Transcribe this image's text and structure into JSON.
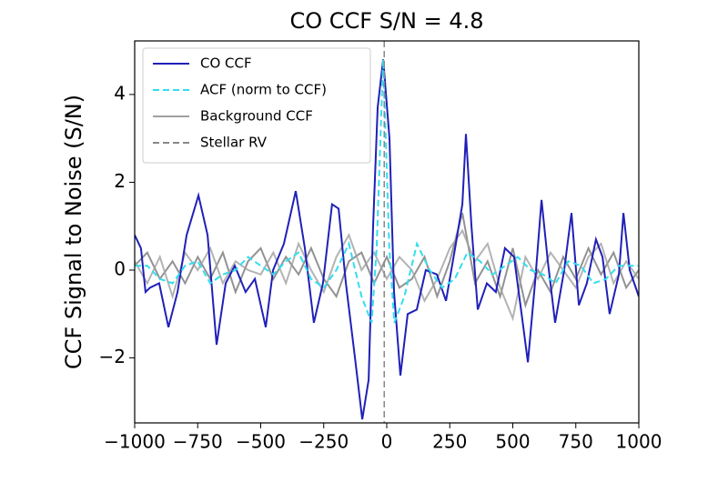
{
  "chart_data": {
    "type": "line",
    "title": "CO CCF S/N = 4.8",
    "ylabel": "CCF Signal to Noise (S/N)",
    "xlim": [
      -1000,
      1000
    ],
    "ylim": [
      -3.48,
      5.22
    ],
    "xticks": [
      {
        "value": -1000,
        "label": "−1000"
      },
      {
        "value": -750,
        "label": "−750"
      },
      {
        "value": -500,
        "label": "−500"
      },
      {
        "value": -250,
        "label": "−250"
      },
      0,
      250,
      500,
      750,
      1000
    ],
    "yticks": [
      {
        "value": -2,
        "label": "−2"
      },
      0,
      2,
      4
    ],
    "legend": "upper left",
    "series": [
      {
        "name": "CO CCF",
        "color": "#2020b8",
        "style": "solid",
        "x": [
          -1000,
          -975,
          -957,
          -939,
          -903,
          -866,
          -830,
          -794,
          -747,
          -711,
          -675,
          -639,
          -603,
          -560,
          -523,
          -480,
          -451,
          -408,
          -361,
          -325,
          -289,
          -253,
          -217,
          -191,
          -162,
          -126,
          -97,
          -72,
          -54,
          -36,
          -14,
          11,
          29,
          54,
          83,
          119,
          155,
          199,
          235,
          271,
          300,
          314,
          336,
          361,
          397,
          433,
          469,
          505,
          542,
          560,
          588,
          614,
          639,
          668,
          704,
          733,
          762,
          794,
          830,
          856,
          884,
          921,
          939,
          964,
          1000
        ],
        "values": [
          0.8,
          0.5,
          -0.5,
          -0.4,
          -0.3,
          -1.3,
          -0.5,
          0.8,
          1.7,
          0.8,
          -1.7,
          -0.3,
          0.1,
          -0.5,
          -0.2,
          -1.3,
          0.0,
          0.6,
          1.8,
          0.5,
          -1.2,
          -0.3,
          1.5,
          1.4,
          -0.3,
          -2.0,
          -3.4,
          -2.5,
          1.0,
          3.7,
          4.8,
          3.0,
          -0.5,
          -2.4,
          -1.0,
          -0.9,
          0.0,
          -0.1,
          -0.7,
          0.5,
          1.5,
          3.1,
          1.0,
          -0.9,
          -0.3,
          -0.5,
          0.5,
          0.3,
          -1.3,
          -2.1,
          -0.3,
          1.6,
          0.2,
          -1.2,
          0.0,
          1.3,
          -0.8,
          -0.3,
          0.7,
          0.3,
          -1.0,
          -0.1,
          1.3,
          0.0,
          -0.6
        ]
      },
      {
        "name": "ACF (norm to CCF)",
        "color": "#33ddee",
        "style": "dashed",
        "x": [
          -1000,
          -950,
          -900,
          -850,
          -800,
          -750,
          -700,
          -650,
          -600,
          -550,
          -500,
          -450,
          -400,
          -350,
          -300,
          -250,
          -200,
          -150,
          -100,
          -60,
          -40,
          -14,
          10,
          30,
          70,
          120,
          170,
          220,
          270,
          320,
          370,
          420,
          470,
          520,
          570,
          620,
          670,
          720,
          770,
          820,
          870,
          920,
          970,
          1000
        ],
        "values": [
          0.1,
          0.1,
          -0.2,
          -0.3,
          0.1,
          0.2,
          -0.3,
          -0.1,
          0.0,
          0.3,
          0.1,
          -0.1,
          0.2,
          0.4,
          -0.2,
          -0.4,
          0.0,
          0.6,
          -0.6,
          -1.2,
          0.5,
          4.8,
          0.5,
          -1.2,
          -0.6,
          0.6,
          0.0,
          -0.4,
          -0.2,
          0.4,
          0.2,
          -0.1,
          0.1,
          0.3,
          0.0,
          -0.1,
          -0.3,
          0.2,
          0.1,
          -0.3,
          -0.2,
          0.1,
          0.1,
          0.1
        ]
      },
      {
        "name": "Background CCF",
        "color": "#a0a0a0",
        "style": "solid",
        "x": [
          -1000,
          -950,
          -900,
          -850,
          -800,
          -750,
          -700,
          -650,
          -600,
          -550,
          -500,
          -450,
          -400,
          -350,
          -300,
          -250,
          -200,
          -150,
          -100,
          -50,
          0,
          50,
          100,
          150,
          200,
          250,
          300,
          350,
          400,
          450,
          500,
          550,
          600,
          650,
          700,
          750,
          800,
          850,
          900,
          950,
          1000
        ],
        "values": [
          0.2,
          -0.3,
          0.3,
          -0.6,
          0.4,
          0.0,
          0.5,
          -0.3,
          0.2,
          0.0,
          -0.1,
          0.4,
          -0.3,
          0.6,
          0.0,
          -0.5,
          0.3,
          0.8,
          0.0,
          0.4,
          -0.2,
          0.3,
          0.0,
          -0.7,
          -0.2,
          0.5,
          0.9,
          0.2,
          0.6,
          -0.4,
          -1.1,
          0.3,
          -0.2,
          0.4,
          0.0,
          -0.4,
          0.3,
          0.6,
          -0.3,
          0.2,
          -0.2
        ]
      },
      {
        "color": "#777777",
        "style": "solid",
        "x": [
          -1000,
          -950,
          -900,
          -850,
          -800,
          -750,
          -700,
          -650,
          -600,
          -550,
          -500,
          -450,
          -400,
          -350,
          -300,
          -250,
          -200,
          -150,
          -100,
          -50,
          0,
          50,
          100,
          150,
          200,
          250,
          300,
          350,
          400,
          450,
          500,
          550,
          600,
          650,
          700,
          750,
          800,
          850,
          900,
          950,
          1000
        ],
        "values": [
          0.1,
          0.4,
          -0.2,
          0.2,
          -0.3,
          0.3,
          -0.2,
          0.4,
          -0.5,
          0.2,
          0.5,
          -0.2,
          0.3,
          -0.1,
          0.5,
          -0.2,
          -0.6,
          0.2,
          0.4,
          -0.3,
          0.3,
          -0.4,
          -0.2,
          0.3,
          -0.6,
          0.2,
          1.3,
          -0.3,
          0.2,
          -0.6,
          0.5,
          -0.8,
          0.0,
          -0.5,
          0.3,
          -0.2,
          0.5,
          -0.1,
          0.4,
          -0.4,
          0.0
        ]
      }
    ],
    "vlines": [
      {
        "name": "Stellar RV",
        "x": -10,
        "color": "#888888",
        "style": "dashed"
      }
    ]
  }
}
